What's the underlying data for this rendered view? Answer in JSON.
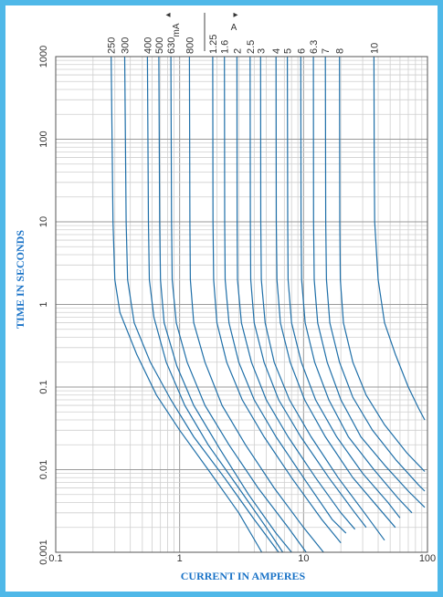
{
  "chart_data": {
    "type": "line",
    "title": "",
    "xlabel": "CURRENT IN AMPERES",
    "ylabel": "TIME IN SECONDS",
    "x_scale": "log",
    "y_scale": "log",
    "xlim": [
      0.1,
      100
    ],
    "ylim": [
      0.001,
      1000
    ],
    "grid": true,
    "x_tick_labels": [
      {
        "value": 0.1,
        "label": "0.1"
      },
      {
        "value": 1,
        "label": "1"
      },
      {
        "value": 10,
        "label": "10"
      },
      {
        "value": 100,
        "label": "100"
      }
    ],
    "y_tick_labels": [
      {
        "value": 0.001,
        "label": "0.001"
      },
      {
        "value": 0.01,
        "label": "0.01"
      },
      {
        "value": 0.1,
        "label": "0.1"
      },
      {
        "value": 1,
        "label": "1"
      },
      {
        "value": 10,
        "label": "10"
      },
      {
        "value": 100,
        "label": "100"
      },
      {
        "value": 1000,
        "label": "1000"
      }
    ],
    "unit_labels": {
      "milliamps": "mA",
      "amps": "A",
      "left_arrow": "◂",
      "right_arrow": "▸"
    },
    "series": [
      {
        "label": "250",
        "points": [
          [
            0.28,
            1000
          ],
          [
            0.29,
            10
          ],
          [
            0.3,
            2
          ],
          [
            0.33,
            0.8
          ],
          [
            0.45,
            0.25
          ],
          [
            0.65,
            0.08
          ],
          [
            1.0,
            0.03
          ],
          [
            1.7,
            0.01
          ],
          [
            3.0,
            0.003
          ],
          [
            4.6,
            0.001
          ]
        ]
      },
      {
        "label": "300",
        "points": [
          [
            0.36,
            1000
          ],
          [
            0.37,
            10
          ],
          [
            0.38,
            2
          ],
          [
            0.43,
            0.6
          ],
          [
            0.58,
            0.2
          ],
          [
            0.85,
            0.07
          ],
          [
            1.3,
            0.025
          ],
          [
            2.3,
            0.008
          ],
          [
            4.0,
            0.0025
          ],
          [
            6.3,
            0.001
          ]
        ]
      },
      {
        "label": "400",
        "points": [
          [
            0.55,
            1000
          ],
          [
            0.56,
            10
          ],
          [
            0.57,
            2
          ],
          [
            0.62,
            0.7
          ],
          [
            0.78,
            0.2
          ],
          [
            1.1,
            0.06
          ],
          [
            1.7,
            0.02
          ],
          [
            3.0,
            0.006
          ],
          [
            5.0,
            0.002
          ],
          [
            6.8,
            0.001
          ]
        ]
      },
      {
        "label": "500",
        "points": [
          [
            0.68,
            1000
          ],
          [
            0.69,
            10
          ],
          [
            0.7,
            2
          ],
          [
            0.75,
            0.6
          ],
          [
            0.95,
            0.18
          ],
          [
            1.3,
            0.06
          ],
          [
            2.1,
            0.018
          ],
          [
            3.6,
            0.005
          ],
          [
            6.0,
            0.0017
          ],
          [
            8.0,
            0.001
          ]
        ]
      },
      {
        "label": "630",
        "points": [
          [
            0.85,
            1000
          ],
          [
            0.86,
            10
          ],
          [
            0.87,
            2
          ],
          [
            0.94,
            0.6
          ],
          [
            1.15,
            0.2
          ],
          [
            1.6,
            0.06
          ],
          [
            2.5,
            0.02
          ],
          [
            4.3,
            0.006
          ],
          [
            7.5,
            0.002
          ],
          [
            10.5,
            0.001
          ]
        ]
      },
      {
        "label": "800",
        "points": [
          [
            1.2,
            1000
          ],
          [
            1.21,
            10
          ],
          [
            1.22,
            2
          ],
          [
            1.3,
            0.6
          ],
          [
            1.6,
            0.2
          ],
          [
            2.2,
            0.06
          ],
          [
            3.4,
            0.02
          ],
          [
            5.8,
            0.006
          ],
          [
            10,
            0.002
          ],
          [
            14.5,
            0.001
          ]
        ]
      },
      {
        "label": "1.25",
        "points": [
          [
            1.85,
            1000
          ],
          [
            1.86,
            10
          ],
          [
            1.88,
            2
          ],
          [
            2.0,
            0.6
          ],
          [
            2.4,
            0.2
          ],
          [
            3.2,
            0.07
          ],
          [
            4.8,
            0.025
          ],
          [
            8.0,
            0.008
          ],
          [
            14,
            0.0025
          ],
          [
            20,
            0.0013
          ]
        ]
      },
      {
        "label": "1.6",
        "points": [
          [
            2.3,
            1000
          ],
          [
            2.31,
            10
          ],
          [
            2.33,
            2
          ],
          [
            2.5,
            0.6
          ],
          [
            3.0,
            0.2
          ],
          [
            4.0,
            0.07
          ],
          [
            6.0,
            0.025
          ],
          [
            10,
            0.008
          ],
          [
            17,
            0.0025
          ],
          [
            22,
            0.0017
          ]
        ]
      },
      {
        "label": "2",
        "points": [
          [
            2.9,
            1000
          ],
          [
            2.91,
            10
          ],
          [
            2.93,
            2
          ],
          [
            3.15,
            0.6
          ],
          [
            3.8,
            0.2
          ],
          [
            5.0,
            0.07
          ],
          [
            7.5,
            0.025
          ],
          [
            12.5,
            0.008
          ],
          [
            20,
            0.003
          ],
          [
            26,
            0.0019
          ]
        ]
      },
      {
        "label": "2.5",
        "points": [
          [
            3.7,
            1000
          ],
          [
            3.72,
            10
          ],
          [
            3.75,
            2
          ],
          [
            4.0,
            0.6
          ],
          [
            4.8,
            0.2
          ],
          [
            6.3,
            0.07
          ],
          [
            9.5,
            0.025
          ],
          [
            16,
            0.008
          ],
          [
            26,
            0.003
          ],
          [
            32,
            0.002
          ]
        ]
      },
      {
        "label": "3",
        "points": [
          [
            4.5,
            1000
          ],
          [
            4.52,
            10
          ],
          [
            4.56,
            2
          ],
          [
            4.9,
            0.6
          ],
          [
            5.8,
            0.2
          ],
          [
            7.7,
            0.07
          ],
          [
            11.5,
            0.025
          ],
          [
            19,
            0.008
          ],
          [
            31,
            0.003
          ],
          [
            45,
            0.0014
          ]
        ]
      },
      {
        "label": "4",
        "points": [
          [
            6.0,
            1000
          ],
          [
            6.03,
            10
          ],
          [
            6.1,
            2
          ],
          [
            6.5,
            0.6
          ],
          [
            7.8,
            0.2
          ],
          [
            10.2,
            0.07
          ],
          [
            15,
            0.025
          ],
          [
            25,
            0.008
          ],
          [
            40,
            0.0035
          ],
          [
            55,
            0.002
          ]
        ]
      },
      {
        "label": "5",
        "points": [
          [
            7.4,
            1000
          ],
          [
            7.45,
            10
          ],
          [
            7.5,
            2
          ],
          [
            8.0,
            0.6
          ],
          [
            9.6,
            0.2
          ],
          [
            12.5,
            0.07
          ],
          [
            18.5,
            0.025
          ],
          [
            30,
            0.009
          ],
          [
            48,
            0.004
          ],
          [
            60,
            0.0026
          ]
        ]
      },
      {
        "label": "6",
        "points": [
          [
            9.5,
            1000
          ],
          [
            9.55,
            10
          ],
          [
            9.65,
            2
          ],
          [
            10.3,
            0.6
          ],
          [
            12.3,
            0.2
          ],
          [
            16,
            0.07
          ],
          [
            23,
            0.025
          ],
          [
            37,
            0.01
          ],
          [
            58,
            0.0045
          ],
          [
            75,
            0.003
          ]
        ]
      },
      {
        "label": "6.3",
        "points": [
          [
            12,
            1000
          ],
          [
            12.05,
            10
          ],
          [
            12.2,
            2
          ],
          [
            13,
            0.6
          ],
          [
            15.5,
            0.2
          ],
          [
            20,
            0.07
          ],
          [
            29,
            0.025
          ],
          [
            46,
            0.011
          ],
          [
            70,
            0.0055
          ],
          [
            95,
            0.0035
          ]
        ]
      },
      {
        "label": "7",
        "points": [
          [
            15,
            1000
          ],
          [
            15.1,
            10
          ],
          [
            15.3,
            2
          ],
          [
            16.3,
            0.6
          ],
          [
            19.5,
            0.2
          ],
          [
            25,
            0.075
          ],
          [
            36,
            0.03
          ],
          [
            56,
            0.013
          ],
          [
            85,
            0.0065
          ],
          [
            95,
            0.0055
          ]
        ]
      },
      {
        "label": "8",
        "points": [
          [
            19.5,
            1000
          ],
          [
            19.6,
            10
          ],
          [
            19.8,
            2
          ],
          [
            21,
            0.6
          ],
          [
            25,
            0.2
          ],
          [
            32,
            0.08
          ],
          [
            45,
            0.035
          ],
          [
            68,
            0.016
          ],
          [
            95,
            0.0095
          ]
        ]
      },
      {
        "label": "10",
        "points": [
          [
            37,
            1000
          ],
          [
            37.2,
            60
          ],
          [
            37.5,
            10
          ],
          [
            40,
            2
          ],
          [
            45,
            0.6
          ],
          [
            55,
            0.25
          ],
          [
            70,
            0.1
          ],
          [
            85,
            0.055
          ],
          [
            95,
            0.04
          ]
        ]
      }
    ]
  }
}
